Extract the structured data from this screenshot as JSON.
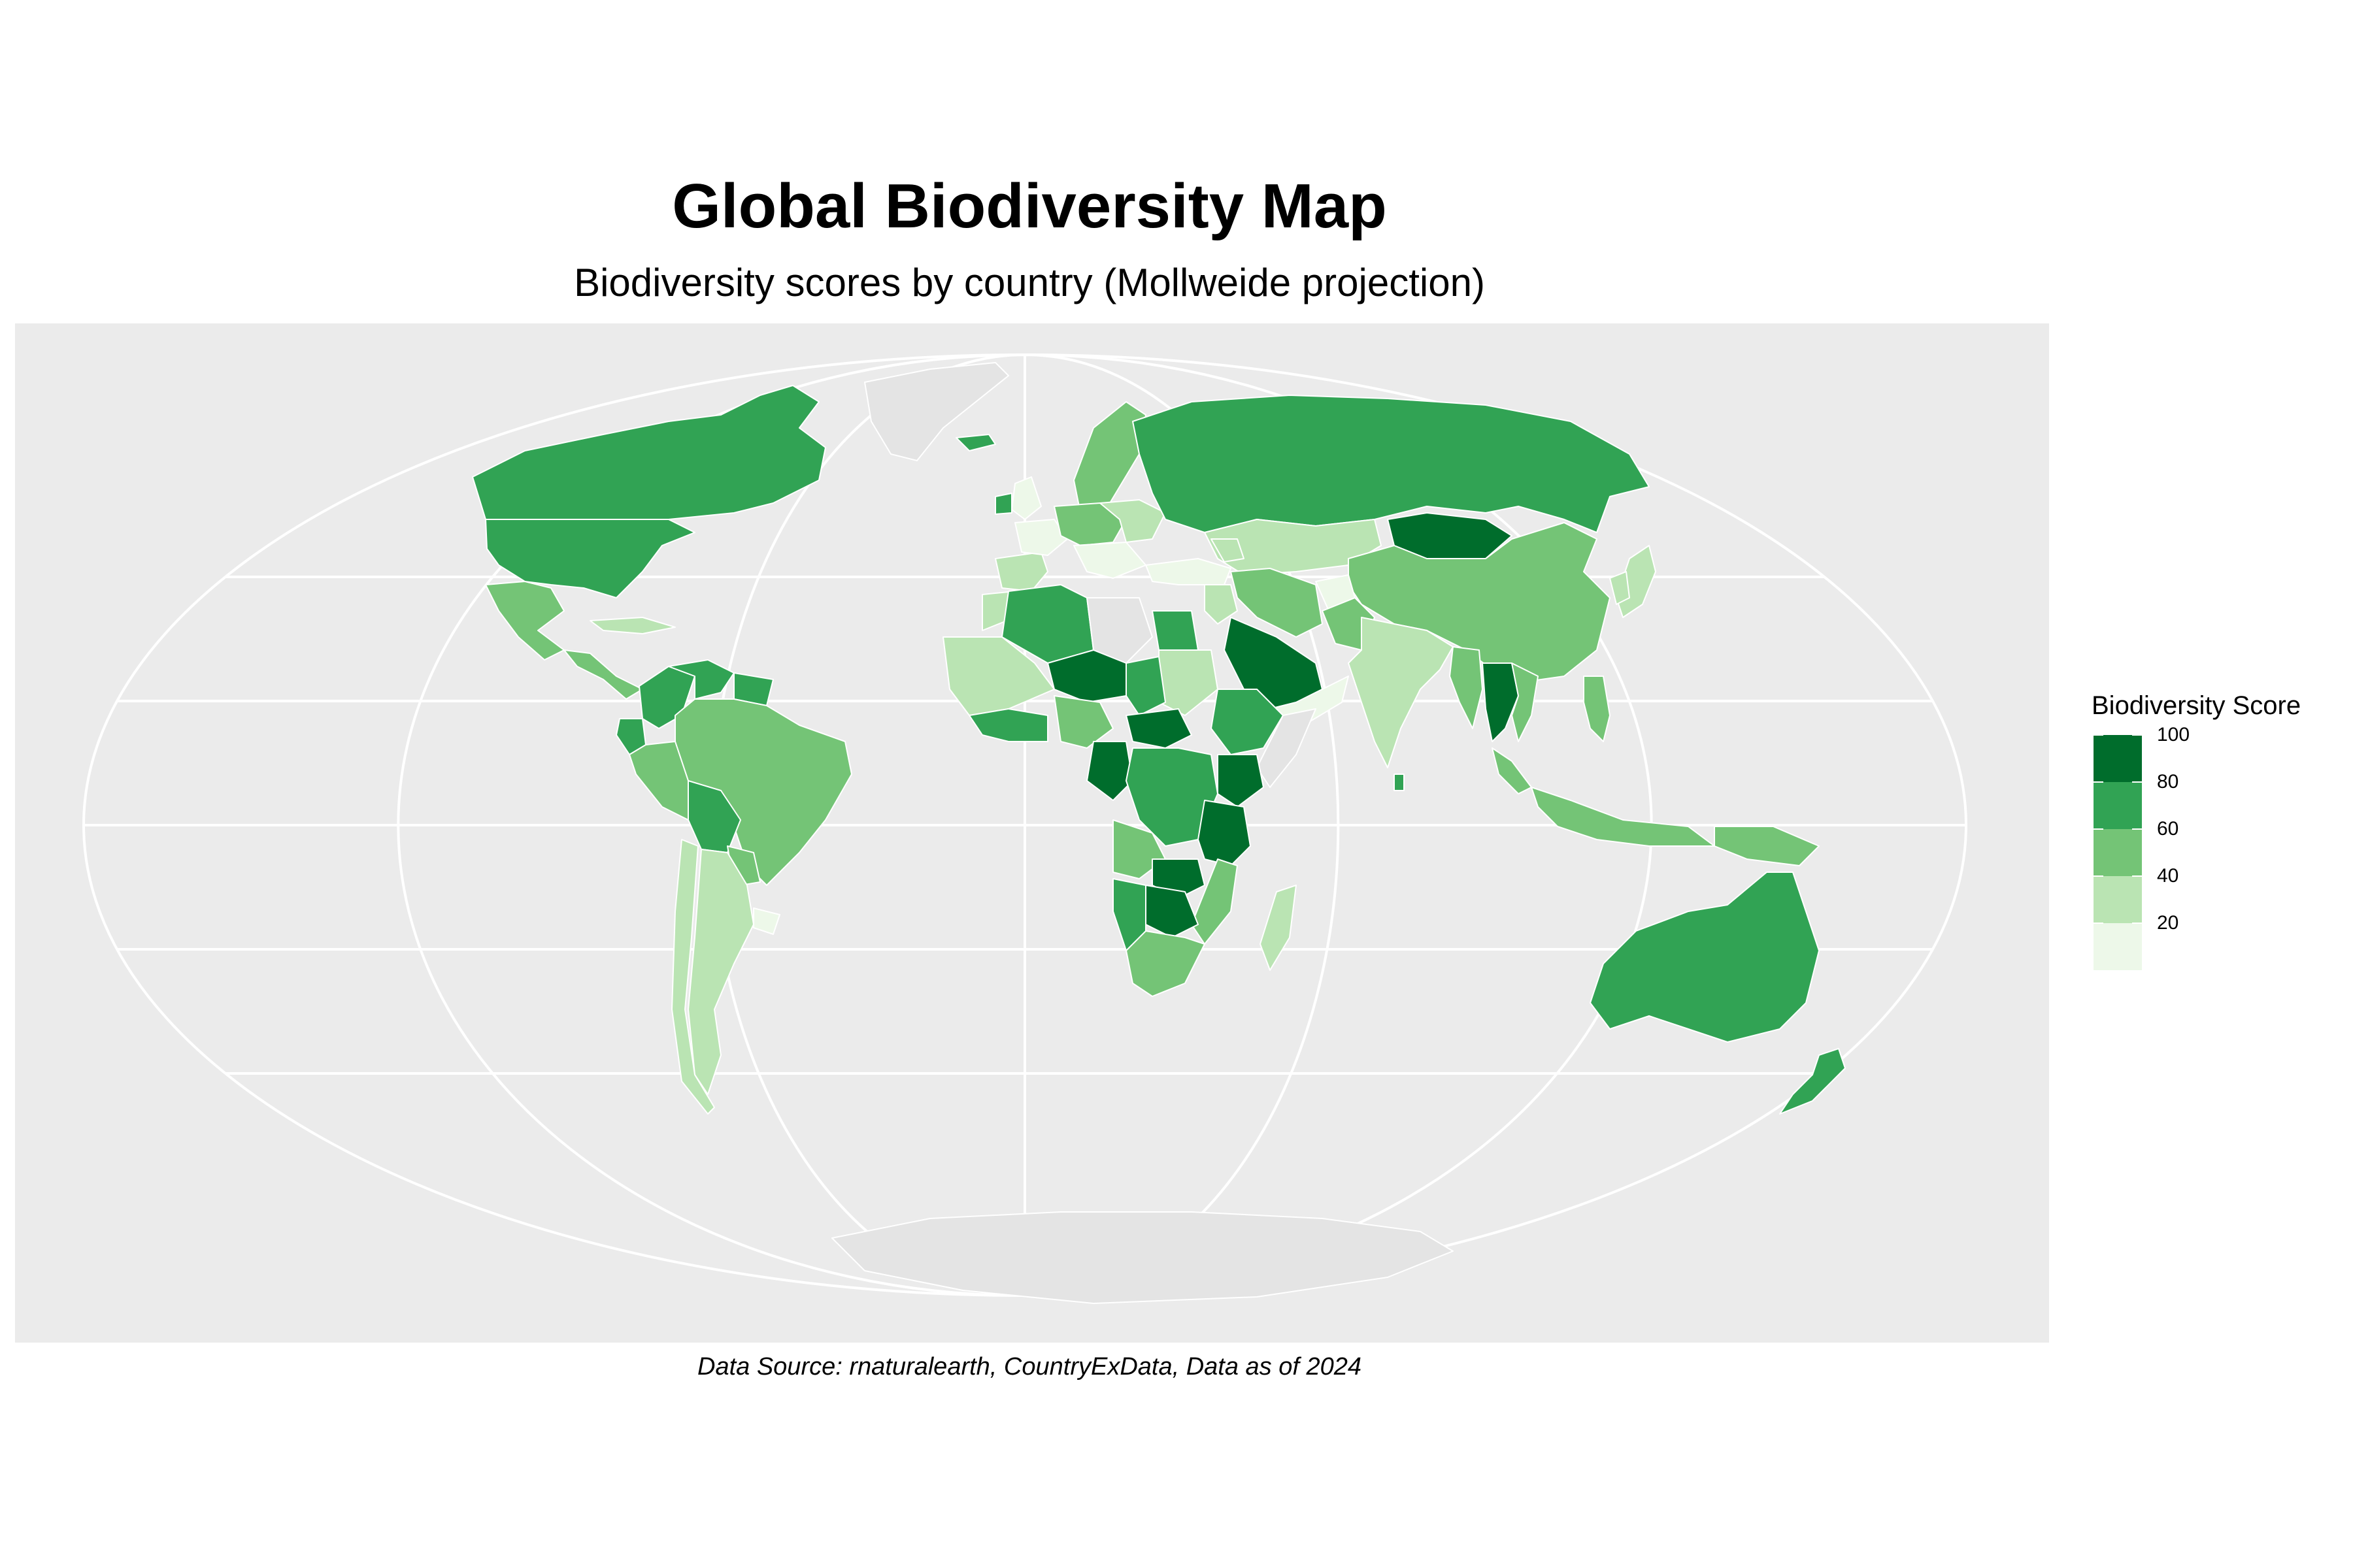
{
  "title": "Global Biodiversity Map",
  "subtitle": "Biodiversity scores by country (Mollweide projection)",
  "caption": "Data Source: rnaturalearth, CountryExData, Data as of 2024",
  "map": {
    "projection": "Mollweide",
    "background_color": "#ebebeb",
    "graticule_color": "#ffffff",
    "no_data_color": "#e4e4e4",
    "border_color": "#ffffff",
    "graticule_latitudes": [
      -60,
      -30,
      0,
      30,
      60
    ],
    "graticule_longitudes": [
      -120,
      -60,
      0,
      60,
      120
    ]
  },
  "legend": {
    "title": "Biodiversity Score",
    "ticks": [
      "100",
      "80",
      "60",
      "40",
      "20"
    ],
    "bins": [
      {
        "range": "80-100",
        "color": "#006d2c"
      },
      {
        "range": "60-80",
        "color": "#31a354"
      },
      {
        "range": "40-60",
        "color": "#74c476"
      },
      {
        "range": "20-40",
        "color": "#bae4b3"
      },
      {
        "range": "0-20",
        "color": "#edf8e9"
      }
    ]
  },
  "regions": [
    {
      "name": "Canada",
      "score": 70
    },
    {
      "name": "United States",
      "score": 65
    },
    {
      "name": "Greenland",
      "score": null
    },
    {
      "name": "Mexico",
      "score": 45
    },
    {
      "name": "Central America",
      "score": 50
    },
    {
      "name": "Caribbean",
      "score": 30
    },
    {
      "name": "Colombia",
      "score": 70
    },
    {
      "name": "Venezuela",
      "score": 70
    },
    {
      "name": "Guianas",
      "score": 70
    },
    {
      "name": "Ecuador",
      "score": 70
    },
    {
      "name": "Peru",
      "score": 45
    },
    {
      "name": "Brazil",
      "score": 45
    },
    {
      "name": "Bolivia",
      "score": 65
    },
    {
      "name": "Paraguay",
      "score": 55
    },
    {
      "name": "Argentina",
      "score": 35
    },
    {
      "name": "Chile",
      "score": 30
    },
    {
      "name": "Uruguay",
      "score": 15
    },
    {
      "name": "Iceland",
      "score": 70
    },
    {
      "name": "United Kingdom",
      "score": 10
    },
    {
      "name": "Ireland",
      "score": 70
    },
    {
      "name": "Scandinavia",
      "score": 50
    },
    {
      "name": "Spain",
      "score": 30
    },
    {
      "name": "France",
      "score": 5
    },
    {
      "name": "Central Europe",
      "score": 55
    },
    {
      "name": "Eastern Europe",
      "score": 30
    },
    {
      "name": "Balkans",
      "score": 15
    },
    {
      "name": "Russia",
      "score": 70
    },
    {
      "name": "Kazakhstan",
      "score": 25
    },
    {
      "name": "Mongolia",
      "score": 90
    },
    {
      "name": "China",
      "score": 50
    },
    {
      "name": "Japan",
      "score": 30
    },
    {
      "name": "Korea",
      "score": 25
    },
    {
      "name": "Turkey",
      "score": 10
    },
    {
      "name": "Caucasus",
      "score": 30
    },
    {
      "name": "Iran",
      "score": 45
    },
    {
      "name": "Afghanistan",
      "score": 10
    },
    {
      "name": "Pakistan",
      "score": 50
    },
    {
      "name": "India",
      "score": 30
    },
    {
      "name": "Sri Lanka",
      "score": 70
    },
    {
      "name": "Myanmar",
      "score": 50
    },
    {
      "name": "Thailand",
      "score": 90
    },
    {
      "name": "Vietnam",
      "score": 55
    },
    {
      "name": "Malaysia",
      "score": 55
    },
    {
      "name": "Indonesia",
      "score": 55
    },
    {
      "name": "Philippines",
      "score": 50
    },
    {
      "name": "Papua New Guinea",
      "score": 50
    },
    {
      "name": "Australia",
      "score": 70
    },
    {
      "name": "New Zealand",
      "score": 70
    },
    {
      "name": "Saudi Arabia",
      "score": 90
    },
    {
      "name": "Yemen and Oman",
      "score": 10
    },
    {
      "name": "Jordan and Iraq",
      "score": 25
    },
    {
      "name": "Morocco",
      "score": 30
    },
    {
      "name": "Algeria",
      "score": 70
    },
    {
      "name": "Libya",
      "score": null
    },
    {
      "name": "Egypt",
      "score": 60
    },
    {
      "name": "Sudan",
      "score": 30
    },
    {
      "name": "West Africa Sahel",
      "score": 30
    },
    {
      "name": "Coastal West Africa",
      "score": 70
    },
    {
      "name": "Niger",
      "score": 90
    },
    {
      "name": "Chad",
      "score": 60
    },
    {
      "name": "Nigeria",
      "score": 50
    },
    {
      "name": "Ethiopia",
      "score": 65
    },
    {
      "name": "Somalia",
      "score": null
    },
    {
      "name": "Central African Republic",
      "score": 90
    },
    {
      "name": "Cameroon and Gabon",
      "score": 90
    },
    {
      "name": "DR Congo",
      "score": 65
    },
    {
      "name": "Kenya",
      "score": 90
    },
    {
      "name": "Tanzania",
      "score": 85
    },
    {
      "name": "Angola",
      "score": 50
    },
    {
      "name": "Zambia",
      "score": 90
    },
    {
      "name": "Mozambique",
      "score": 55
    },
    {
      "name": "Namibia",
      "score": 65
    },
    {
      "name": "Botswana and Zimbabwe",
      "score": 90
    },
    {
      "name": "South Africa",
      "score": 50
    },
    {
      "name": "Madagascar",
      "score": 30
    },
    {
      "name": "Antarctica",
      "score": null
    }
  ]
}
